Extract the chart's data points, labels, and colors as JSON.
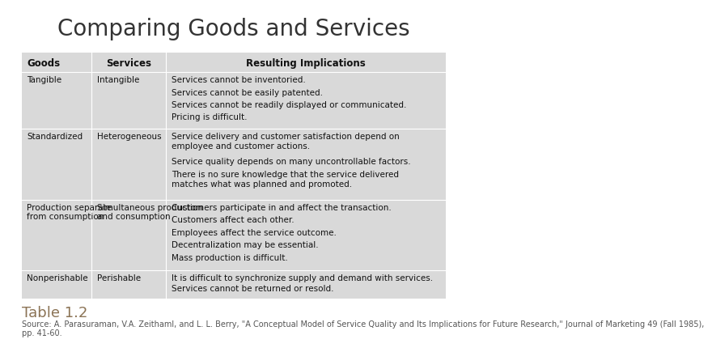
{
  "title": "Comparing Goods and Services",
  "title_fontsize": 20,
  "title_color": "#333333",
  "background_color": "#ffffff",
  "table_bg": "#d9d9d9",
  "col_headers": [
    "Goods",
    "Services",
    "Resulting Implications"
  ],
  "rows": [
    {
      "goods": "Tangible",
      "services": "Intangible",
      "implications": [
        "Services cannot be inventoried.",
        "Services cannot be easily patented.",
        "Services cannot be readily displayed or communicated.",
        "Pricing is difficult."
      ]
    },
    {
      "goods": "Standardized",
      "services": "Heterogeneous",
      "implications": [
        "Service delivery and customer satisfaction depend on\nemployee and customer actions.",
        "Service quality depends on many uncontrollable factors.",
        "There is no sure knowledge that the service delivered\nmatches what was planned and promoted."
      ]
    },
    {
      "goods": "Production separate\nfrom consumption",
      "services": "Simultaneous production\nand consumption",
      "implications": [
        "Customers participate in and affect the transaction.",
        "Customers affect each other.",
        "Employees affect the service outcome.",
        "Decentralization may be essential.",
        "Mass production is difficult."
      ]
    },
    {
      "goods": "Nonperishable",
      "services": "Perishable",
      "implications": [
        "It is difficult to synchronize supply and demand with services.",
        "Services cannot be returned or resold."
      ]
    }
  ],
  "table_label": "Table 1.2",
  "table_label_color": "#8b7355",
  "table_label_fontsize": 13,
  "source_text": "Source: A. Parasuraman, V.A. Zeithaml, and L. L. Berry, \"A Conceptual Model of Service Quality and Its Implications for Future Research,\" Journal of Marketing 49 (Fall 1985),\npp. 41-60.",
  "source_fontsize": 7,
  "source_color": "#555555",
  "body_fontsize": 7.5,
  "header_fontsize": 8.5
}
